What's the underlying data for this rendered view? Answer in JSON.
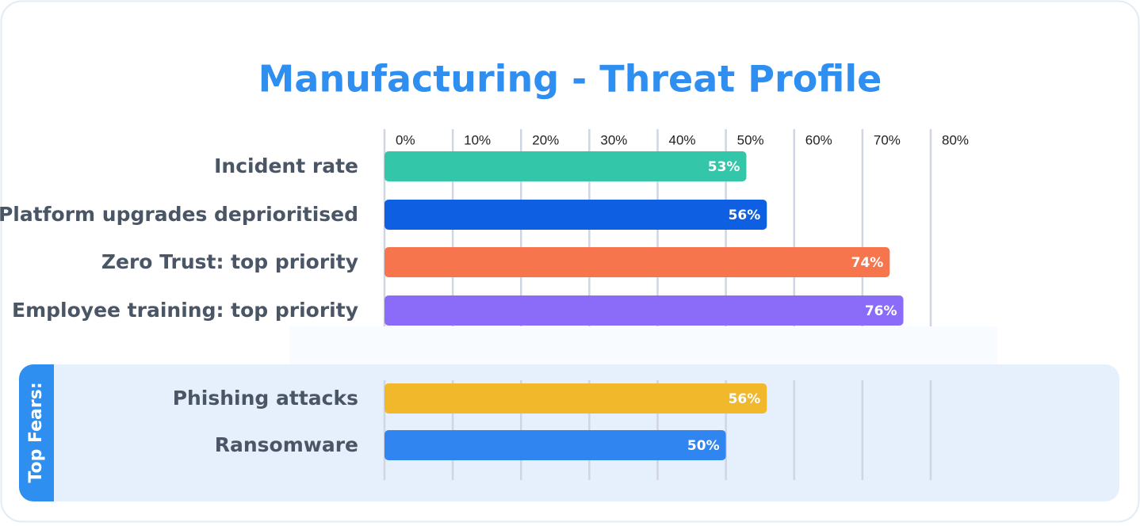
{
  "chart_data": [
    {
      "type": "bar",
      "orientation": "horizontal",
      "title": "Manufacturing - Threat Profile",
      "categories": [
        "Incident rate",
        "Platform upgrades deprioritised",
        "Zero Trust: top priority",
        "Employee training: top priority"
      ],
      "values": [
        53,
        56,
        74,
        76
      ],
      "value_labels": [
        "53%",
        "56%",
        "74%",
        "76%"
      ],
      "colors": [
        "#33c6a8",
        "#0f5fe2",
        "#f6754d",
        "#8a6cf8"
      ],
      "xlim": [
        0,
        80
      ],
      "xticks": [
        {
          "value": 0,
          "label": "0%"
        },
        {
          "value": 10,
          "label": "10%"
        },
        {
          "value": 20,
          "label": "20%"
        },
        {
          "value": 30,
          "label": "30%"
        },
        {
          "value": 40,
          "label": "40%"
        },
        {
          "value": 50,
          "label": "50%"
        },
        {
          "value": 60,
          "label": "60%"
        },
        {
          "value": 70,
          "label": "70%"
        },
        {
          "value": 80,
          "label": "80%"
        }
      ],
      "grid": true
    },
    {
      "type": "bar",
      "orientation": "horizontal",
      "title": "Top Fears:",
      "categories": [
        "Phishing attacks",
        "Ransomware"
      ],
      "values": [
        56,
        50
      ],
      "value_labels": [
        "56%",
        "50%"
      ],
      "colors": [
        "#f0b82a",
        "#3085f0"
      ]
    }
  ]
}
